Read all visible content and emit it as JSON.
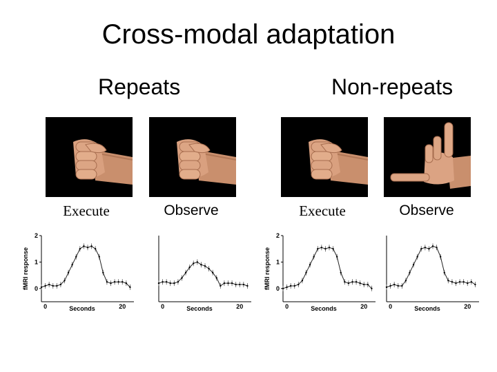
{
  "slide": {
    "title": "Cross-modal adaptation"
  },
  "groups": [
    {
      "label": "Repeats"
    },
    {
      "label": "Non-repeats"
    }
  ],
  "conditions": [
    {
      "label": "Execute",
      "hand": "fist"
    },
    {
      "label": "Observe",
      "hand": "fist"
    },
    {
      "label": "Execute",
      "hand": "fist"
    },
    {
      "label": "Observe",
      "hand": "open"
    }
  ],
  "chart_data": [
    {
      "type": "line",
      "ylabel": "fMRI response",
      "xlabel": "Seconds",
      "x_ticks": [
        0,
        20
      ],
      "y_ticks": [
        0,
        1,
        2
      ],
      "xlim": [
        -1,
        23
      ],
      "ylim": [
        -0.5,
        2
      ],
      "x": [
        -1,
        0,
        1,
        2,
        3,
        4,
        5,
        6,
        7,
        8,
        9,
        10,
        11,
        12,
        13,
        14,
        15,
        16,
        17,
        18,
        19,
        20,
        21,
        22
      ],
      "values": [
        0.05,
        0.1,
        0.15,
        0.1,
        0.1,
        0.15,
        0.3,
        0.6,
        0.9,
        1.2,
        1.5,
        1.6,
        1.55,
        1.6,
        1.5,
        1.2,
        0.6,
        0.25,
        0.2,
        0.25,
        0.25,
        0.25,
        0.2,
        0.05
      ]
    },
    {
      "type": "line",
      "ylabel": "",
      "xlabel": "Seconds",
      "x_ticks": [
        0,
        20
      ],
      "y_ticks": [],
      "xlim": [
        -1,
        23
      ],
      "ylim": [
        -0.5,
        2
      ],
      "x": [
        -1,
        0,
        1,
        2,
        3,
        4,
        5,
        6,
        7,
        8,
        9,
        10,
        11,
        12,
        13,
        14,
        15,
        16,
        17,
        18,
        19,
        20,
        21,
        22
      ],
      "values": [
        0.2,
        0.25,
        0.25,
        0.2,
        0.2,
        0.25,
        0.4,
        0.6,
        0.8,
        0.95,
        1.0,
        0.9,
        0.85,
        0.75,
        0.6,
        0.4,
        0.1,
        0.2,
        0.2,
        0.2,
        0.15,
        0.15,
        0.15,
        0.1
      ]
    },
    {
      "type": "line",
      "ylabel": "fMRI response",
      "xlabel": "Seconds",
      "x_ticks": [
        0,
        20
      ],
      "y_ticks": [
        0,
        1,
        2
      ],
      "xlim": [
        -1,
        23
      ],
      "ylim": [
        -0.5,
        2
      ],
      "x": [
        -1,
        0,
        1,
        2,
        3,
        4,
        5,
        6,
        7,
        8,
        9,
        10,
        11,
        12,
        13,
        14,
        15,
        16,
        17,
        18,
        19,
        20,
        21,
        22
      ],
      "values": [
        0.0,
        0.05,
        0.1,
        0.1,
        0.15,
        0.3,
        0.6,
        0.9,
        1.2,
        1.5,
        1.55,
        1.5,
        1.55,
        1.5,
        1.2,
        0.6,
        0.25,
        0.2,
        0.25,
        0.25,
        0.2,
        0.15,
        0.15,
        0.0
      ]
    },
    {
      "type": "line",
      "ylabel": "",
      "xlabel": "Seconds",
      "x_ticks": [
        0,
        20
      ],
      "y_ticks": [],
      "xlim": [
        -1,
        23
      ],
      "ylim": [
        -0.5,
        2
      ],
      "x": [
        -1,
        0,
        1,
        2,
        3,
        4,
        5,
        6,
        7,
        8,
        9,
        10,
        11,
        12,
        13,
        14,
        15,
        16,
        17,
        18,
        19,
        20,
        21,
        22
      ],
      "values": [
        0.05,
        0.1,
        0.15,
        0.1,
        0.1,
        0.3,
        0.6,
        0.9,
        1.2,
        1.5,
        1.55,
        1.5,
        1.6,
        1.55,
        1.2,
        0.6,
        0.3,
        0.25,
        0.2,
        0.25,
        0.25,
        0.2,
        0.25,
        0.15
      ]
    }
  ]
}
